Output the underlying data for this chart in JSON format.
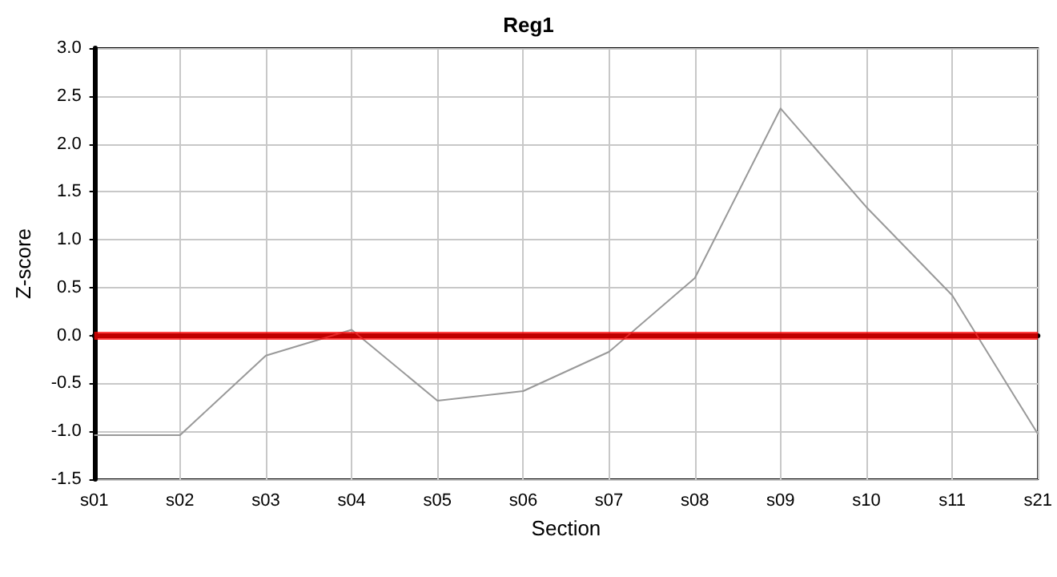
{
  "chart_data": {
    "type": "line",
    "title": "Reg1",
    "xlabel": "Section",
    "ylabel": "Z-score",
    "categories": [
      "s01",
      "s02",
      "s03",
      "s04",
      "s05",
      "s06",
      "s07",
      "s08",
      "s09",
      "s10",
      "s11",
      "s21"
    ],
    "series": [
      {
        "color": "#999999",
        "values": [
          -1.04,
          -1.04,
          -0.21,
          0.06,
          -0.68,
          -0.58,
          -0.17,
          0.6,
          2.37,
          1.34,
          0.42,
          -1.03
        ]
      }
    ],
    "ylim": [
      -1.5,
      3.0
    ],
    "yticks": [
      {
        "value": -1.5,
        "label": "-1.5"
      },
      {
        "value": -1,
        "label": "-1.0"
      },
      {
        "value": -0.5,
        "label": "-0.5"
      },
      {
        "value": 0,
        "label": "0.0"
      },
      {
        "value": 0.5,
        "label": "0.5"
      },
      {
        "value": 1,
        "label": "1.0"
      },
      {
        "value": 1.5,
        "label": "1.5"
      },
      {
        "value": 2,
        "label": "2.0"
      },
      {
        "value": 2.5,
        "label": "2.5"
      },
      {
        "value": 3,
        "label": "3.0"
      }
    ],
    "ref_lines": [
      {
        "axis": "y",
        "value": 0,
        "color": "#ff0000"
      }
    ],
    "grid": true,
    "marker": "none",
    "line_style": "solid"
  }
}
